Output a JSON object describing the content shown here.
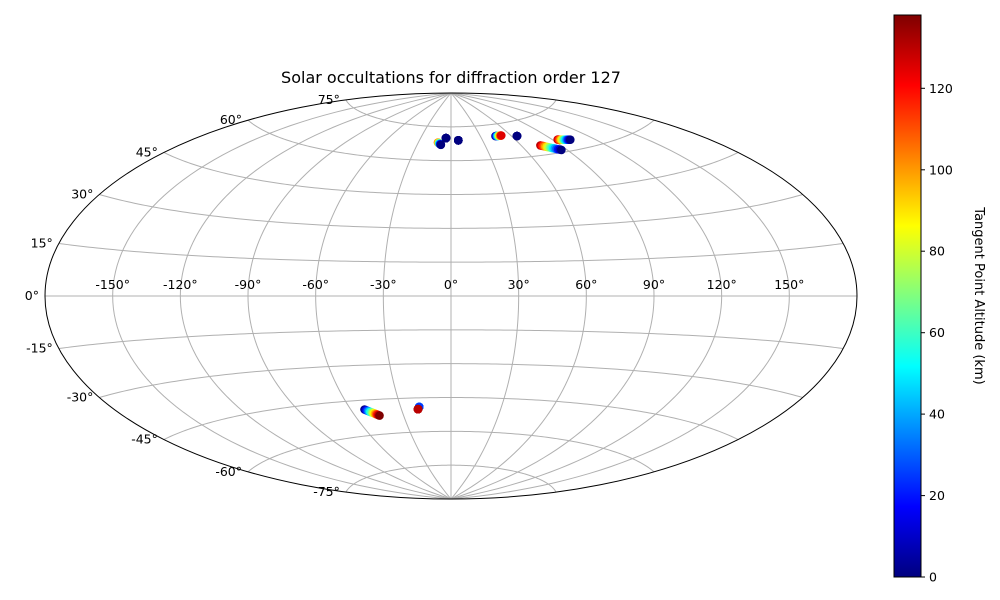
{
  "chart_data": {
    "type": "scatter",
    "projection": "aitoff",
    "title": "Solar occultations for diffraction order 127",
    "x_tick_labels": [
      "-150°",
      "-120°",
      "-90°",
      "-60°",
      "-30°",
      "0°",
      "30°",
      "60°",
      "90°",
      "120°",
      "150°"
    ],
    "x_ticks": [
      -150,
      -120,
      -90,
      -60,
      -30,
      0,
      30,
      60,
      90,
      120,
      150
    ],
    "y_tick_labels": [
      "-75°",
      "-60°",
      "-45°",
      "-30°",
      "-15°",
      "0°",
      "15°",
      "30°",
      "45°",
      "60°",
      "75°"
    ],
    "y_ticks": [
      -75,
      -60,
      -45,
      -30,
      -15,
      0,
      15,
      30,
      45,
      60,
      75
    ],
    "xlim": [
      -180,
      180
    ],
    "ylim": [
      -90,
      90
    ],
    "grid": true,
    "colormap": "jet",
    "colorbar": {
      "label": "Tangent Point Altitude (km)",
      "range": [
        0,
        138
      ],
      "tick_values": [
        0,
        20,
        40,
        60,
        80,
        100,
        120
      ],
      "tick_labels": [
        "0",
        "20",
        "40",
        "60",
        "80",
        "100",
        "120"
      ]
    },
    "tracks": [
      {
        "lon_start": -12,
        "lat_start": 68,
        "alt_start": 110,
        "lon_end": -9,
        "lat_end": 67,
        "alt_end": 0
      },
      {
        "lon_start": -5,
        "lat_start": 70,
        "alt_start": 0,
        "lon_end": -5,
        "lat_end": 70,
        "alt_end": 0
      },
      {
        "lon_start": 7,
        "lat_start": 69,
        "alt_start": 0,
        "lon_end": 7,
        "lat_end": 69,
        "alt_end": 0
      },
      {
        "lon_start": 45,
        "lat_start": 70,
        "alt_start": 0,
        "lon_end": 51,
        "lat_end": 70,
        "alt_end": 125
      },
      {
        "lon_start": 65,
        "lat_start": 69,
        "alt_start": 0,
        "lon_end": 65,
        "lat_end": 69,
        "alt_end": 0
      },
      {
        "lon_start": 75,
        "lat_start": 64,
        "alt_start": 130,
        "lon_end": 86,
        "lat_end": 61,
        "alt_end": 0
      },
      {
        "lon_start": 94,
        "lat_start": 65,
        "alt_start": 130,
        "lon_end": 103,
        "lat_end": 64,
        "alt_end": 0
      },
      {
        "lon_start": -52,
        "lat_start": -49,
        "alt_start": 0,
        "lon_end": -45,
        "lat_end": -52,
        "alt_end": 138
      },
      {
        "lon_start": -19,
        "lat_start": -49,
        "alt_start": 50,
        "lon_end": -19,
        "lat_end": -49,
        "alt_end": 25
      },
      {
        "lon_start": -20,
        "lat_start": -50,
        "alt_start": 138,
        "lon_end": -20,
        "lat_end": -50,
        "alt_end": 130
      }
    ]
  }
}
